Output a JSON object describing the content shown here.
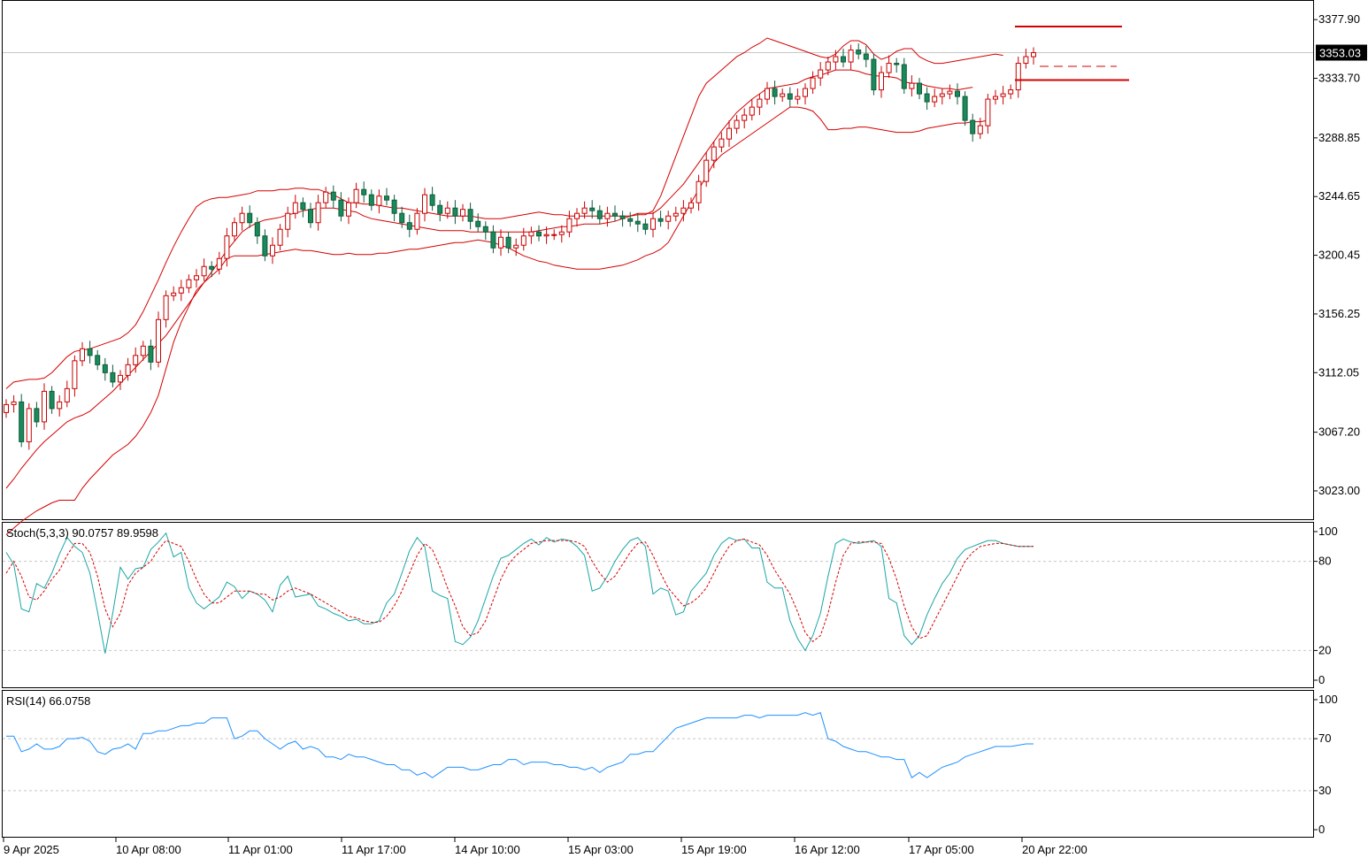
{
  "chart_data": [
    {
      "type": "candlestick",
      "title": "",
      "ylim": [
        3001.0,
        3392.0
      ],
      "y_ticks": [
        "3377.90",
        "3333.70",
        "3288.85",
        "3244.65",
        "3200.45",
        "3156.25",
        "3112.05",
        "3067.20",
        "3023.00"
      ],
      "y_tick_values": [
        3377.9,
        3333.7,
        3288.85,
        3244.65,
        3200.45,
        3156.25,
        3112.05,
        3067.2,
        3023.0
      ],
      "current_price_label": "3353.03",
      "current_price": 3353.03,
      "x_ticks": [
        "9 Apr 2025",
        "10 Apr 08:00",
        "11 Apr 01:00",
        "11 Apr 17:00",
        "14 Apr 10:00",
        "15 Apr 03:00",
        "15 Apr 19:00",
        "16 Apr 12:00",
        "17 Apr 05:00",
        "20 Apr 22:00"
      ],
      "overlay": "Bollinger Bands",
      "colors": {
        "bull": "#ffffff",
        "bear": "#1a8a5a",
        "outline": "#c80000",
        "bands": "#d40000",
        "level_line": "#d40000",
        "grid": "#c8c8c8",
        "badge": "#000000"
      },
      "close": [
        3088,
        3090,
        3060,
        3085,
        3075,
        3098,
        3085,
        3090,
        3100,
        3121,
        3130,
        3125,
        3118,
        3112,
        3105,
        3110,
        3118,
        3125,
        3132,
        3120,
        3152,
        3170,
        3172,
        3176,
        3182,
        3185,
        3192,
        3190,
        3198,
        3215,
        3225,
        3232,
        3225,
        3215,
        3200,
        3208,
        3220,
        3232,
        3240,
        3235,
        3225,
        3240,
        3248,
        3242,
        3230,
        3240,
        3250,
        3246,
        3238,
        3245,
        3242,
        3232,
        3225,
        3220,
        3232,
        3246,
        3238,
        3232,
        3236,
        3230,
        3235,
        3226,
        3222,
        3218,
        3206,
        3214,
        3206,
        3208,
        3215,
        3218,
        3215,
        3216,
        3216,
        3218,
        3228,
        3232,
        3236,
        3234,
        3228,
        3232,
        3230,
        3228,
        3226,
        3224,
        3220,
        3228,
        3226,
        3230,
        3232,
        3236,
        3240,
        3256,
        3272,
        3282,
        3288,
        3296,
        3302,
        3306,
        3312,
        3318,
        3326,
        3320,
        3322,
        3318,
        3320,
        3326,
        3334,
        3340,
        3346,
        3350,
        3346,
        3355,
        3352,
        3348,
        3325,
        3338,
        3345,
        3344,
        3326,
        3330,
        3322,
        3316,
        3320,
        3322,
        3324,
        3320,
        3302,
        3292,
        3298,
        3318,
        3320,
        3322,
        3325,
        3345,
        3350,
        3353
      ],
      "bb_upper": [
        3100,
        3105,
        3106,
        3107,
        3107,
        3108,
        3112,
        3118,
        3124,
        3128,
        3129,
        3130,
        3132,
        3134,
        3136,
        3138,
        3142,
        3148,
        3158,
        3170,
        3182,
        3195,
        3207,
        3218,
        3228,
        3237,
        3241,
        3243,
        3244,
        3244,
        3245,
        3246,
        3247,
        3249,
        3249,
        3249,
        3250,
        3250,
        3251,
        3251,
        3250,
        3250,
        3248,
        3246,
        3243,
        3240,
        3240,
        3239,
        3239,
        3238,
        3237,
        3236,
        3236,
        3235,
        3234,
        3233,
        3232,
        3231,
        3230,
        3230,
        3230,
        3230,
        3229,
        3228,
        3228,
        3228,
        3229,
        3230,
        3231,
        3232,
        3233,
        3232,
        3231,
        3231,
        3230,
        3230,
        3230,
        3230,
        3230,
        3230,
        3230,
        3230,
        3230,
        3231,
        3231,
        3234,
        3245,
        3260,
        3275,
        3290,
        3305,
        3320,
        3330,
        3335,
        3340,
        3345,
        3350,
        3353,
        3357,
        3360,
        3364,
        3362,
        3360,
        3358,
        3356,
        3354,
        3352,
        3350,
        3349,
        3352,
        3358,
        3362,
        3362,
        3359,
        3352,
        3348,
        3350,
        3354,
        3356,
        3356,
        3350,
        3347,
        3345,
        3345,
        3346,
        3347,
        3348,
        3349,
        3350,
        3351,
        3352,
        3351
      ],
      "bb_mid": [
        3025,
        3032,
        3040,
        3047,
        3054,
        3060,
        3065,
        3070,
        3075,
        3078,
        3080,
        3083,
        3088,
        3093,
        3098,
        3104,
        3110,
        3116,
        3122,
        3128,
        3134,
        3140,
        3148,
        3156,
        3164,
        3172,
        3180,
        3188,
        3196,
        3204,
        3211,
        3218,
        3222,
        3225,
        3227,
        3228,
        3229,
        3231,
        3232,
        3234,
        3235,
        3236,
        3236,
        3236,
        3235,
        3234,
        3233,
        3230,
        3228,
        3227,
        3226,
        3225,
        3224,
        3223,
        3222,
        3221,
        3220,
        3219,
        3219,
        3219,
        3219,
        3218,
        3218,
        3218,
        3218,
        3218,
        3218,
        3218,
        3218,
        3218,
        3219,
        3220,
        3221,
        3222,
        3222,
        3223,
        3224,
        3224,
        3224,
        3225,
        3226,
        3228,
        3230,
        3232,
        3232,
        3232,
        3236,
        3242,
        3248,
        3254,
        3262,
        3270,
        3278,
        3286,
        3294,
        3301,
        3308,
        3313,
        3318,
        3322,
        3326,
        3327,
        3328,
        3329,
        3330,
        3333,
        3335,
        3336,
        3338,
        3340,
        3340,
        3340,
        3339,
        3337,
        3336,
        3335,
        3335,
        3334,
        3331,
        3330,
        3330,
        3328,
        3327,
        3326,
        3326,
        3325,
        3326,
        3327
      ],
      "bb_lower": [
        2990,
        2995,
        3000,
        3004,
        3008,
        3011,
        3014,
        3016,
        3016,
        3016,
        3025,
        3032,
        3038,
        3044,
        3050,
        3054,
        3058,
        3064,
        3072,
        3082,
        3095,
        3115,
        3135,
        3150,
        3162,
        3174,
        3180,
        3185,
        3190,
        3198,
        3200,
        3200,
        3200,
        3200,
        3201,
        3202,
        3203,
        3204,
        3205,
        3204,
        3204,
        3203,
        3202,
        3201,
        3201,
        3202,
        3201,
        3201,
        3201,
        3202,
        3202,
        3203,
        3204,
        3205,
        3205,
        3206,
        3207,
        3208,
        3209,
        3210,
        3210,
        3211,
        3212,
        3211,
        3210,
        3208,
        3206,
        3203,
        3200,
        3198,
        3196,
        3195,
        3193,
        3192,
        3191,
        3190,
        3190,
        3190,
        3190,
        3191,
        3192,
        3193,
        3195,
        3197,
        3200,
        3202,
        3205,
        3210,
        3220,
        3230,
        3240,
        3250,
        3260,
        3270,
        3276,
        3280,
        3284,
        3288,
        3292,
        3296,
        3300,
        3304,
        3308,
        3312,
        3312,
        3311,
        3309,
        3303,
        3295,
        3295,
        3296,
        3296,
        3297,
        3297,
        3296,
        3295,
        3294,
        3293,
        3293,
        3293,
        3294,
        3296,
        3297,
        3298,
        3299,
        3300,
        3300,
        3301,
        3301,
        3302
      ]
    },
    {
      "type": "line",
      "title": "Stoch(5,3,3) 90.0757 89.9598",
      "ylim": [
        0,
        100
      ],
      "y_ticks": [
        "100",
        "80",
        "20",
        "0"
      ],
      "y_tick_values": [
        100,
        80,
        20,
        0
      ],
      "levels": [
        80,
        20
      ],
      "series": [
        {
          "name": "%K",
          "color": "#1aa5a5",
          "dash": "none",
          "values": [
            86,
            78,
            48,
            46,
            65,
            62,
            72,
            85,
            96,
            90,
            86,
            72,
            46,
            18,
            45,
            76,
            68,
            75,
            76,
            88,
            93,
            99,
            83,
            86,
            62,
            52,
            48,
            52,
            56,
            66,
            63,
            55,
            60,
            58,
            54,
            46,
            64,
            70,
            56,
            57,
            58,
            50,
            48,
            45,
            43,
            40,
            41,
            38,
            38,
            40,
            52,
            58,
            72,
            87,
            96,
            90,
            60,
            57,
            55,
            26,
            24,
            29,
            40,
            55,
            70,
            82,
            84,
            88,
            92,
            95,
            91,
            96,
            93,
            95,
            94,
            90,
            84,
            60,
            62,
            70,
            80,
            88,
            94,
            96,
            90,
            58,
            62,
            60,
            44,
            46,
            60,
            66,
            72,
            84,
            92,
            96,
            94,
            95,
            89,
            89,
            66,
            62,
            62,
            40,
            28,
            20,
            30,
            45,
            70,
            92,
            95,
            93,
            92,
            93,
            94,
            90,
            55,
            52,
            30,
            24,
            30,
            44,
            55,
            65,
            72,
            82,
            88,
            90,
            92,
            94,
            94,
            92,
            91,
            90,
            90,
            90
          ]
        },
        {
          "name": "%D",
          "color": "#d40000",
          "dash": "3,2",
          "values": [
            72,
            80,
            70,
            56,
            54,
            60,
            68,
            74,
            84,
            92,
            92,
            86,
            70,
            48,
            36,
            45,
            64,
            72,
            76,
            80,
            88,
            94,
            92,
            90,
            80,
            68,
            58,
            52,
            52,
            56,
            60,
            60,
            60,
            58,
            58,
            54,
            56,
            60,
            62,
            60,
            58,
            55,
            52,
            49,
            46,
            43,
            42,
            40,
            39,
            39,
            43,
            50,
            60,
            72,
            84,
            92,
            88,
            76,
            62,
            50,
            36,
            30,
            32,
            40,
            54,
            68,
            78,
            84,
            88,
            92,
            93,
            94,
            94,
            94,
            94,
            93,
            90,
            80,
            72,
            66,
            70,
            78,
            86,
            92,
            93,
            84,
            72,
            62,
            56,
            50,
            52,
            56,
            62,
            72,
            82,
            90,
            94,
            95,
            93,
            91,
            84,
            74,
            66,
            58,
            46,
            32,
            26,
            30,
            45,
            66,
            84,
            92,
            93,
            93,
            93,
            92,
            82,
            68,
            50,
            36,
            28,
            30,
            40,
            50,
            60,
            70,
            80,
            86,
            90,
            91,
            92,
            92,
            91,
            90,
            90,
            90
          ]
        }
      ]
    },
    {
      "type": "line",
      "title": "RSI(14) 66.0758",
      "ylim": [
        0,
        100
      ],
      "y_ticks": [
        "100",
        "70",
        "30",
        "0"
      ],
      "y_tick_values": [
        100,
        70,
        30,
        0
      ],
      "levels": [
        70,
        30
      ],
      "series": [
        {
          "name": "RSI",
          "color": "#1e90ff",
          "dash": "none",
          "values": [
            72,
            72,
            60,
            62,
            66,
            62,
            62,
            64,
            70,
            70,
            71,
            68,
            60,
            58,
            62,
            63,
            66,
            62,
            74,
            74,
            76,
            76,
            78,
            80,
            80,
            82,
            82,
            86,
            86,
            86,
            70,
            72,
            76,
            76,
            70,
            66,
            62,
            66,
            68,
            62,
            64,
            62,
            56,
            56,
            54,
            58,
            56,
            56,
            54,
            52,
            50,
            50,
            46,
            46,
            42,
            44,
            40,
            44,
            48,
            48,
            48,
            46,
            46,
            48,
            50,
            50,
            54,
            54,
            50,
            52,
            52,
            52,
            50,
            50,
            48,
            48,
            46,
            48,
            44,
            48,
            50,
            52,
            58,
            58,
            60,
            60,
            66,
            72,
            78,
            80,
            82,
            84,
            86,
            86,
            86,
            86,
            86,
            88,
            88,
            86,
            88,
            88,
            88,
            88,
            88,
            90,
            88,
            90,
            70,
            68,
            64,
            62,
            60,
            60,
            58,
            56,
            56,
            54,
            54,
            40,
            44,
            40,
            44,
            48,
            50,
            52,
            56,
            58,
            60,
            62,
            64,
            64,
            64,
            65,
            66,
            66
          ]
        }
      ]
    }
  ]
}
